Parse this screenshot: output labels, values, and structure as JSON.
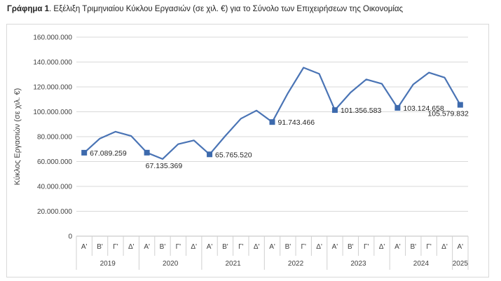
{
  "title": {
    "prefix": "Γράφημα 1",
    "text": ". Εξέλιξη Τριμηνιαίου Κύκλου Εργασιών (σε χιλ. €) για το Σύνολο των Επιχειρήσεων της Οικονομίας"
  },
  "chart_data": {
    "type": "line",
    "ylabel": "Κύκλος Εργασιών (σε χιλ. €)",
    "ylim": [
      0,
      160000000
    ],
    "yticks": [
      "0",
      "20.000.000",
      "40.000.000",
      "60.000.000",
      "80.000.000",
      "100.000.000",
      "120.000.000",
      "140.000.000",
      "160.000.000"
    ],
    "grid": true,
    "line_color": "#4a74b5",
    "x": [
      {
        "q": "Α'",
        "year": "2019"
      },
      {
        "q": "Β'",
        "year": "2019"
      },
      {
        "q": "Γ'",
        "year": "2019"
      },
      {
        "q": "Δ'",
        "year": "2019"
      },
      {
        "q": "Α'",
        "year": "2020"
      },
      {
        "q": "Β'",
        "year": "2020"
      },
      {
        "q": "Γ'",
        "year": "2020"
      },
      {
        "q": "Δ'",
        "year": "2020"
      },
      {
        "q": "Α'",
        "year": "2021"
      },
      {
        "q": "Β'",
        "year": "2021"
      },
      {
        "q": "Γ'",
        "year": "2021"
      },
      {
        "q": "Δ'",
        "year": "2021"
      },
      {
        "q": "Α'",
        "year": "2022"
      },
      {
        "q": "Β'",
        "year": "2022"
      },
      {
        "q": "Γ'",
        "year": "2022"
      },
      {
        "q": "Δ'",
        "year": "2022"
      },
      {
        "q": "Α'",
        "year": "2023"
      },
      {
        "q": "Β'",
        "year": "2023"
      },
      {
        "q": "Γ'",
        "year": "2023"
      },
      {
        "q": "Δ'",
        "year": "2023"
      },
      {
        "q": "Α'",
        "year": "2024"
      },
      {
        "q": "Β'",
        "year": "2024"
      },
      {
        "q": "Γ'",
        "year": "2024"
      },
      {
        "q": "Δ'",
        "year": "2024"
      },
      {
        "q": "Α'",
        "year": "2025"
      }
    ],
    "years": [
      "2019",
      "2020",
      "2021",
      "2022",
      "2023",
      "2024",
      "2025"
    ],
    "values": [
      67089259,
      78500000,
      84000000,
      80500000,
      67135369,
      62000000,
      74000000,
      77000000,
      65765520,
      80500000,
      94500000,
      101000000,
      91743466,
      115000000,
      135500000,
      130500000,
      101356583,
      115500000,
      126000000,
      122500000,
      103124658,
      122000000,
      131500000,
      127500000,
      105579832
    ],
    "labels": [
      {
        "index": 0,
        "text": "67.089.259"
      },
      {
        "index": 4,
        "text": "67.135.369"
      },
      {
        "index": 8,
        "text": "65.765.520"
      },
      {
        "index": 12,
        "text": "91.743.466"
      },
      {
        "index": 16,
        "text": "101.356.583"
      },
      {
        "index": 20,
        "text": "103.124.658"
      },
      {
        "index": 24,
        "text": "105.579.832"
      }
    ]
  }
}
